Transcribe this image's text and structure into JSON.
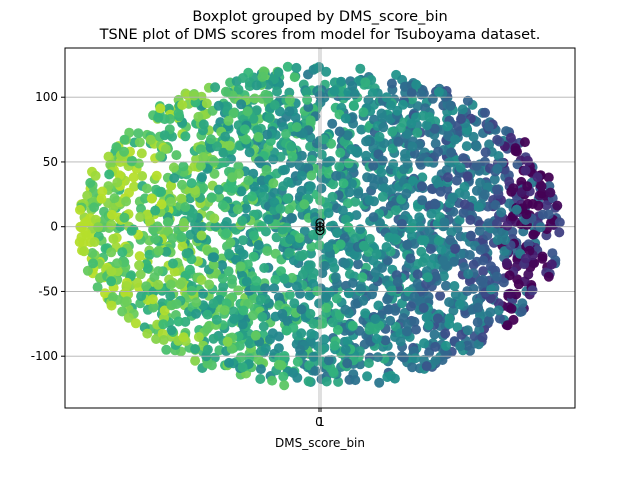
{
  "chart_data": {
    "type": "scatter",
    "title_lines": [
      "Boxplot grouped by DMS_score_bin",
      "TSNE plot of DMS scores from model for Tsuboyama dataset."
    ],
    "xlabel": "DMS_score_bin",
    "ylabel": "",
    "x_ticks": [
      "0",
      "1"
    ],
    "y_ticks": [
      100,
      50,
      0,
      -50,
      -100
    ],
    "ylim": [
      -140,
      138
    ],
    "xlim": [
      -135,
      135
    ],
    "grid": true,
    "legend": "none",
    "colormap": "viridis",
    "colors": {
      "dark_purple": "#46237a",
      "deep_purple": "#3b1f6e",
      "blue": "#3a538b",
      "teal": "#2c8a8a",
      "green": "#3fb07a",
      "lime": "#8fd14a",
      "boxplot_black": "#000000"
    },
    "boxplot_markers_y": [
      -3,
      0,
      3
    ],
    "point_cloud_description": "ellipse of TSNE points, x ≈ -135..135, y ≈ -125..125"
  }
}
